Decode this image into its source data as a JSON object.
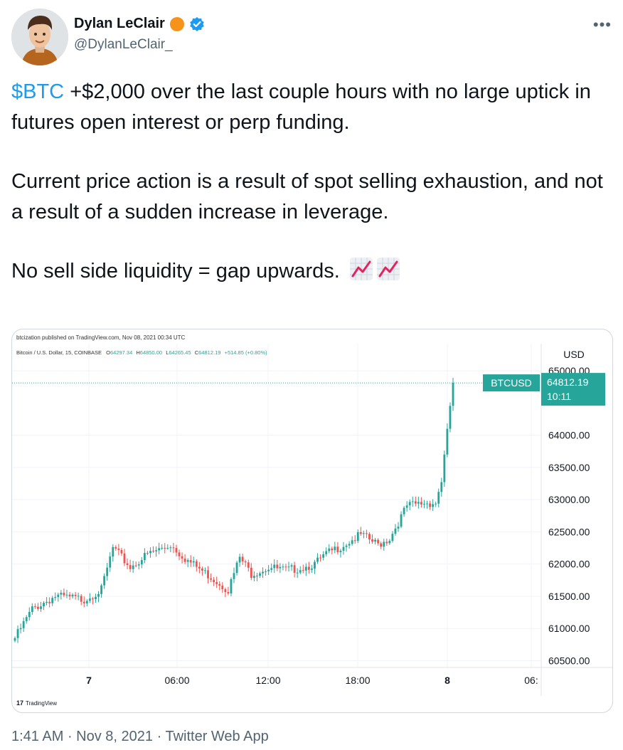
{
  "author": {
    "display_name": "Dylan LeClair",
    "handle": "@DylanLeClair_"
  },
  "tweet": {
    "cashtag": "$BTC",
    "line1_rest": " +$2,000 over the last couple hours with no large uptick in futures open interest or perp funding.",
    "paragraph2": "Current price action is a result of spot selling exhaustion, and not a result of a sudden increase in leverage.",
    "paragraph3": "No sell side liquidity = gap upwards.",
    "emojis": [
      "chart-increasing-icon",
      "chart-increasing-icon"
    ]
  },
  "meta": {
    "time": "1:41 AM",
    "sep1": " · ",
    "date": "Nov 8, 2021",
    "sep2": " · ",
    "source": "Twitter Web App"
  },
  "colors": {
    "accent": "#1d9bf0",
    "verified": "#1d9bf0",
    "orange_badge": "#f7931a",
    "candle_up": "#26a69a",
    "candle_down": "#ef5350"
  },
  "chart_data": {
    "type": "candlestick",
    "published_line": "btcization published on TradingView.com, Nov 08, 2021 00:34 UTC",
    "symbol_line_prefix": "Bitcoin / U.S. Dollar, 15, COINBASE",
    "ohlc": {
      "O": "64297.34",
      "H": "64850.00",
      "L": "64265.45",
      "C": "64812.19",
      "change": "+514.85 (+0.80%)"
    },
    "currency": "USD",
    "price_label": {
      "symbol": "BTCUSD",
      "price": "64812.19",
      "countdown": "10:11"
    },
    "y_ticks": [
      "65000.00",
      "64000.00",
      "63500.00",
      "63000.00",
      "62500.00",
      "62000.00",
      "61500.00",
      "61000.00",
      "60500.00"
    ],
    "y_tick_values": [
      65000,
      64000,
      63500,
      63000,
      62500,
      62000,
      61500,
      61000,
      60500
    ],
    "x_ticks": [
      "7",
      "06:00",
      "12:00",
      "18:00",
      "8",
      "06:"
    ],
    "ylim": [
      60450,
      65200
    ],
    "last_price": 64812.19,
    "anchors": [
      [
        0,
        60850
      ],
      [
        6,
        61300
      ],
      [
        14,
        61500
      ],
      [
        24,
        61450
      ],
      [
        30,
        61600
      ],
      [
        34,
        62250
      ],
      [
        40,
        61950
      ],
      [
        46,
        62150
      ],
      [
        54,
        62300
      ],
      [
        60,
        62050
      ],
      [
        68,
        61800
      ],
      [
        74,
        61600
      ],
      [
        78,
        62100
      ],
      [
        82,
        61850
      ],
      [
        88,
        61950
      ],
      [
        94,
        61900
      ],
      [
        100,
        61950
      ],
      [
        104,
        62000
      ],
      [
        108,
        62150
      ],
      [
        114,
        62300
      ],
      [
        120,
        62450
      ],
      [
        126,
        62300
      ],
      [
        130,
        62400
      ],
      [
        136,
        62900
      ],
      [
        142,
        62950
      ],
      [
        146,
        62950
      ],
      [
        148,
        63300
      ],
      [
        150,
        64100
      ],
      [
        152,
        64812.19
      ]
    ],
    "logo_text": "TradingView"
  }
}
